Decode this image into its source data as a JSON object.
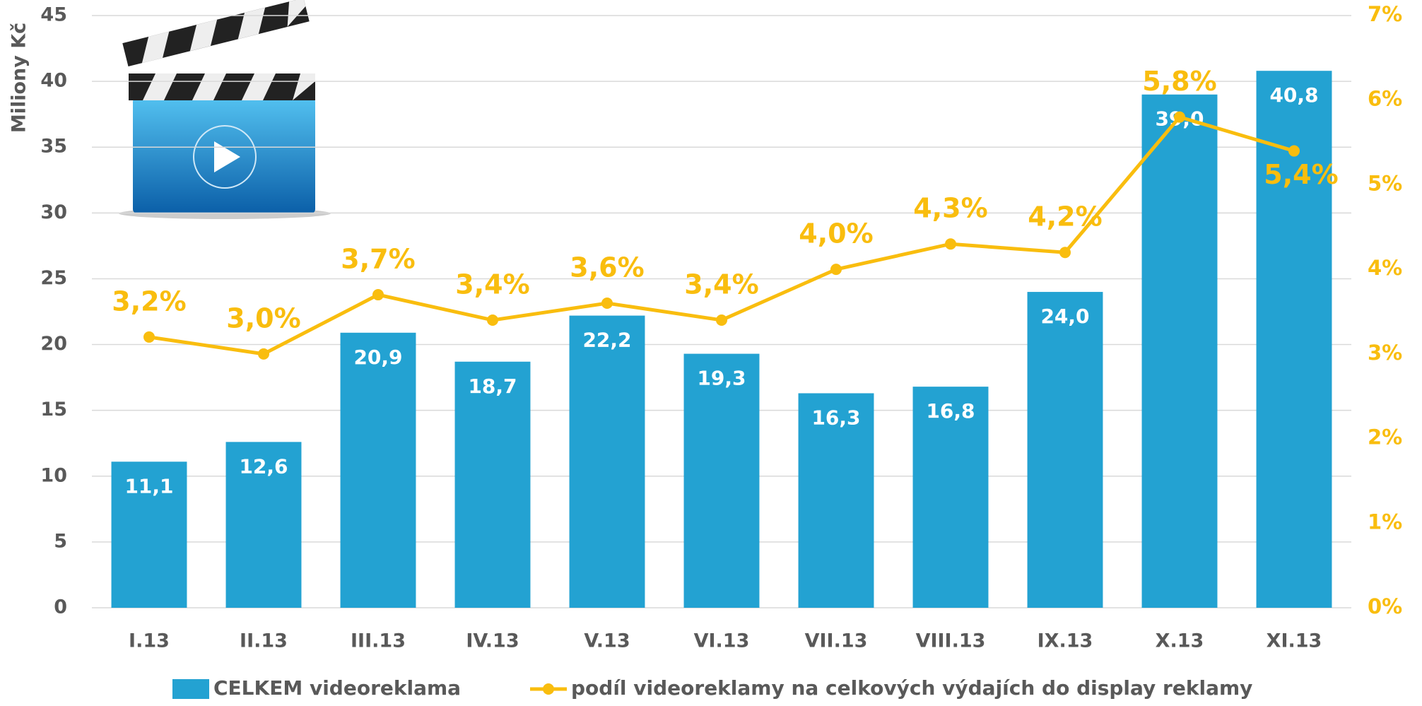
{
  "chart_data": {
    "type": "bar+line",
    "y_label": "Miliony Kč",
    "categories": [
      "I.13",
      "II.13",
      "III.13",
      "IV.13",
      "V.13",
      "VI.13",
      "VII.13",
      "VIII.13",
      "IX.13",
      "X.13",
      "XI.13"
    ],
    "series": [
      {
        "name": "CELKEM videoreklama",
        "color": "#23a2d2",
        "type": "bar",
        "values": [
          11.1,
          12.6,
          20.9,
          18.7,
          22.2,
          19.3,
          16.3,
          16.8,
          24.0,
          39.0,
          40.8
        ],
        "value_labels": [
          "11,1",
          "12,6",
          "20,9",
          "18,7",
          "22,2",
          "19,3",
          "16,3",
          "16,8",
          "24,0",
          "39,0",
          "40,8"
        ]
      },
      {
        "name": "podíl videoreklamy na celkových výdajích do display reklamy",
        "color": "#f9bd0e",
        "type": "line",
        "axis": "y2",
        "values": [
          3.2,
          3.0,
          3.7,
          3.4,
          3.6,
          3.4,
          4.0,
          4.3,
          4.2,
          5.8,
          5.4
        ],
        "value_labels": [
          "3,2%",
          "3,0%",
          "3,7%",
          "3,4%",
          "3,6%",
          "3,4%",
          "4,0%",
          "4,3%",
          "4,2%",
          "5,8%",
          "5,4%"
        ]
      }
    ],
    "ylim": [
      0,
      45
    ],
    "yticks": [
      0,
      5,
      10,
      15,
      20,
      25,
      30,
      35,
      40,
      45
    ],
    "y2lim": [
      0,
      7
    ],
    "y2ticks": [
      {
        "value": 0,
        "label": "0%"
      },
      {
        "value": 1,
        "label": "1%"
      },
      {
        "value": 2,
        "label": "2%"
      },
      {
        "value": 3,
        "label": "3%"
      },
      {
        "value": 4,
        "label": "4%"
      },
      {
        "value": 5,
        "label": "5%"
      },
      {
        "value": 6,
        "label": "6%"
      },
      {
        "value": 7,
        "label": "7%"
      }
    ],
    "grid": true,
    "legend": "bottom"
  }
}
